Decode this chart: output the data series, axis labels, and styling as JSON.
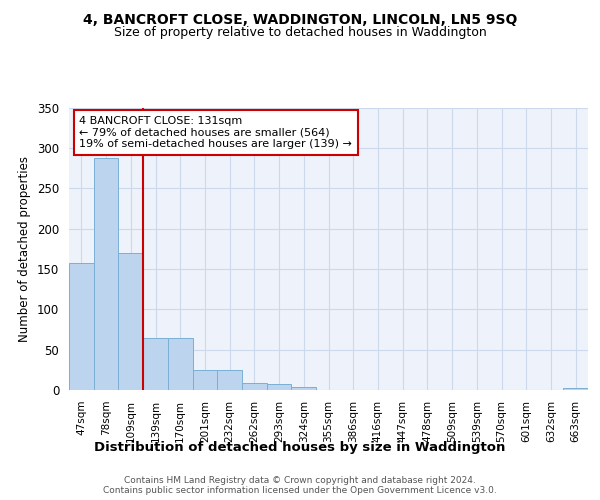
{
  "title_line1": "4, BANCROFT CLOSE, WADDINGTON, LINCOLN, LN5 9SQ",
  "title_line2": "Size of property relative to detached houses in Waddington",
  "xlabel": "Distribution of detached houses by size in Waddington",
  "ylabel": "Number of detached properties",
  "categories": [
    "47sqm",
    "78sqm",
    "109sqm",
    "139sqm",
    "170sqm",
    "201sqm",
    "232sqm",
    "262sqm",
    "293sqm",
    "324sqm",
    "355sqm",
    "386sqm",
    "416sqm",
    "447sqm",
    "478sqm",
    "509sqm",
    "539sqm",
    "570sqm",
    "601sqm",
    "632sqm",
    "663sqm"
  ],
  "values": [
    157,
    287,
    170,
    65,
    65,
    25,
    25,
    9,
    7,
    4,
    0,
    0,
    0,
    0,
    0,
    0,
    0,
    0,
    0,
    0,
    3
  ],
  "bar_color": "#bcd4ee",
  "bar_edge_color": "#7aafd4",
  "grid_color": "#ccd8ec",
  "background_color": "#eef2fa",
  "vline_x": 2.5,
  "vline_color": "#cc0000",
  "annotation_text": "4 BANCROFT CLOSE: 131sqm\n← 79% of detached houses are smaller (564)\n19% of semi-detached houses are larger (139) →",
  "annotation_box_color": "#ffffff",
  "annotation_box_edge_color": "#cc0000",
  "footer_text": "Contains HM Land Registry data © Crown copyright and database right 2024.\nContains public sector information licensed under the Open Government Licence v3.0.",
  "ylim": [
    0,
    350
  ],
  "yticks": [
    0,
    50,
    100,
    150,
    200,
    250,
    300,
    350
  ]
}
